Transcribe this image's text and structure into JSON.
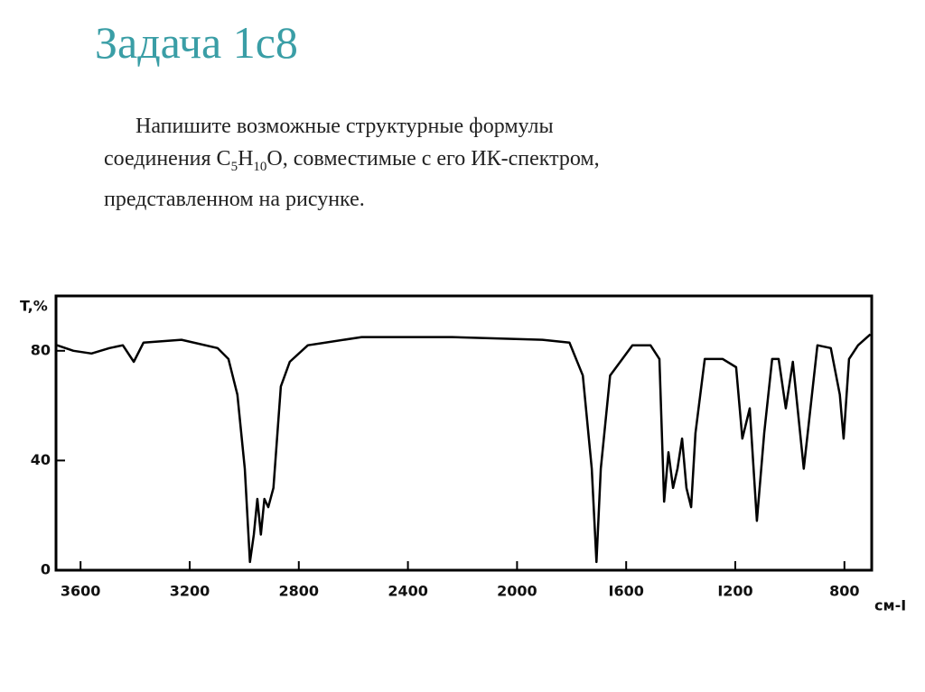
{
  "title": "Задача 1с8",
  "text": {
    "line1": "Напишите возможные структурные формулы",
    "line2": [
      "соединения C",
      "5",
      "H",
      "10",
      "O, совместимые с его ИК-спектром,"
    ],
    "line3": "представленном на рисунке."
  },
  "chart_data": {
    "type": "line",
    "y_label": "T,%",
    "x_label": "см-I",
    "color": "#000000",
    "x": [
      3686,
      3626,
      3560,
      3494,
      3445,
      3405,
      3369,
      3230,
      3098,
      3058,
      3025,
      2998,
      2979,
      2965,
      2952,
      2939,
      2926,
      2912,
      2893,
      2866,
      2833,
      2767,
      2569,
      2238,
      1907,
      1808,
      1759,
      1726,
      1709,
      1693,
      1659,
      1577,
      1511,
      1478,
      1461,
      1445,
      1428,
      1412,
      1395,
      1379,
      1362,
      1346,
      1312,
      1246,
      1197,
      1174,
      1147,
      1121,
      1094,
      1065,
      1041,
      1015,
      989,
      949,
      899,
      850,
      817,
      803,
      783,
      750,
      705
    ],
    "values": [
      82,
      80,
      79,
      81,
      82,
      76,
      83,
      84,
      81,
      77,
      64,
      37,
      3,
      13,
      26,
      13,
      26,
      23,
      30,
      67,
      76,
      82,
      85,
      85,
      84,
      83,
      71,
      37,
      3,
      37,
      71,
      82,
      82,
      77,
      25,
      43,
      30,
      37,
      48,
      30,
      23,
      50,
      77,
      77,
      74,
      48,
      59,
      18,
      50,
      77,
      77,
      59,
      76,
      37,
      82,
      81,
      64,
      48,
      77,
      82,
      86
    ],
    "xlim": [
      3690,
      700
    ],
    "ylim": [
      0,
      100
    ],
    "xticks": [
      3600,
      3200,
      2800,
      2400,
      2000,
      {
        "value": 1600,
        "label": "I600"
      },
      {
        "value": 1200,
        "label": "I200"
      },
      800
    ],
    "yticks": [
      0,
      40,
      80
    ]
  }
}
